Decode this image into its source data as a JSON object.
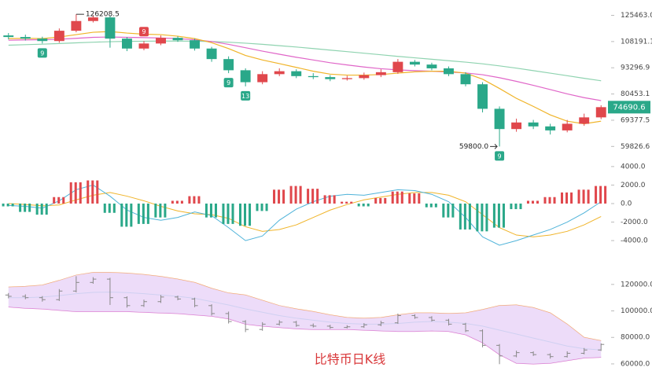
{
  "chart_data": [
    {
      "type": "candlestick",
      "log": true,
      "up_color": "#e0474c",
      "down_color": "#2aa889",
      "open": [
        112000,
        111000,
        110000,
        108500,
        115000,
        121500,
        124000,
        110000,
        104000,
        107000,
        110500,
        109000,
        104000,
        98000,
        92000,
        86000,
        90000,
        91500,
        89000,
        88500,
        87500,
        88000,
        89500,
        91000,
        96500,
        95000,
        93000,
        90000,
        85000,
        74000,
        66000,
        68500,
        67000,
        65500,
        68000,
        70500
      ],
      "high": [
        113500,
        112500,
        111200,
        116500,
        126208.5,
        125500,
        125000,
        111000,
        108500,
        112000,
        111500,
        110000,
        105000,
        99500,
        93000,
        91500,
        93000,
        92500,
        90500,
        89500,
        89200,
        90800,
        92500,
        98000,
        97500,
        96000,
        94000,
        91000,
        86000,
        75000,
        70000,
        69500,
        68000,
        69500,
        72000,
        75500
      ],
      "low": [
        109500,
        108800,
        107000,
        107500,
        114000,
        120500,
        104500,
        102500,
        103000,
        106000,
        108000,
        102800,
        96500,
        90500,
        84000,
        85000,
        89000,
        88000,
        87500,
        86500,
        86800,
        87200,
        88500,
        90200,
        94000,
        92000,
        89000,
        84000,
        72500,
        59800,
        65000,
        66000,
        64000,
        64800,
        67200,
        69800
      ],
      "close": [
        111000,
        110000,
        108500,
        115000,
        121500,
        124000,
        110000,
        104000,
        107000,
        110500,
        109000,
        104000,
        98000,
        92000,
        86000,
        90000,
        91500,
        89000,
        88500,
        87500,
        88000,
        89500,
        91000,
        96500,
        95000,
        93000,
        90000,
        85000,
        74000,
        66000,
        68500,
        67000,
        65500,
        68000,
        70500,
        74690.6
      ],
      "series": [
        {
          "color": "#f0b429",
          "values": [
            110000,
            110200,
            110000,
            111000,
            112500,
            114000,
            114500,
            113500,
            112800,
            112500,
            111500,
            110000,
            107500,
            104000,
            100000,
            97500,
            95500,
            93500,
            91500,
            90000,
            89500,
            89500,
            89800,
            90500,
            91200,
            91500,
            91500,
            90500,
            87500,
            83000,
            78500,
            75000,
            71500,
            69000,
            68000,
            69000
          ]
        },
        {
          "color": "#e066c8",
          "values": [
            109000,
            109200,
            109300,
            109600,
            110200,
            110800,
            111000,
            110800,
            110600,
            110400,
            110000,
            109300,
            108200,
            106500,
            104500,
            102500,
            100700,
            99000,
            97500,
            96000,
            94800,
            93700,
            92800,
            92200,
            91800,
            91500,
            91100,
            90600,
            89700,
            88200,
            86400,
            84500,
            82500,
            80500,
            78800,
            77500
          ]
        },
        {
          "color": "#8fd3b0",
          "values": [
            106000,
            106300,
            106600,
            107000,
            107400,
            107800,
            108100,
            108300,
            108400,
            108500,
            108500,
            108400,
            108200,
            107800,
            107200,
            106500,
            105700,
            104900,
            104000,
            103100,
            102200,
            101300,
            100400,
            99500,
            98700,
            97900,
            97100,
            96300,
            95400,
            94300,
            93100,
            91800,
            90500,
            89200,
            87900,
            86700
          ]
        }
      ],
      "ylim": [
        56800,
        134400
      ],
      "yticks": [
        {
          "value": 125463,
          "label": "125463.0"
        },
        108191.1,
        93296.9,
        80453.1,
        69377.5,
        59826.6
      ],
      "annotations": [
        {
          "value": 126208.5,
          "label": "126208.5"
        },
        {
          "value": 59800,
          "label": "59800.0"
        }
      ],
      "td_marks": [
        {
          "index": 2,
          "value": 9,
          "side": "below"
        },
        {
          "index": 8,
          "value": 9,
          "side": "above"
        },
        {
          "index": 13,
          "value": 9,
          "side": "below"
        },
        {
          "index": 14,
          "value": 13,
          "side": "below"
        },
        {
          "index": 29,
          "value": 9,
          "side": "below"
        }
      ]
    },
    {
      "type": "macd",
      "up_color": "#e0474c",
      "down_color": "#2aa889",
      "values": [
        -300,
        -900,
        -1200,
        700,
        2300,
        2500,
        -1000,
        -2500,
        -2200,
        -1500,
        300,
        800,
        -1500,
        -2200,
        -2400,
        -800,
        1500,
        1900,
        1600,
        900,
        200,
        -300,
        600,
        1300,
        1100,
        -400,
        -1500,
        -2800,
        -3000,
        -2600,
        -600,
        300,
        700,
        1200,
        1500,
        1900
      ],
      "series": [
        {
          "color": "#4fb3d9",
          "values": [
            -200,
            -300,
            -500,
            300,
            1500,
            2000,
            800,
            -700,
            -1500,
            -1800,
            -1500,
            -900,
            -1300,
            -2600,
            -4000,
            -3500,
            -1800,
            -600,
            200,
            800,
            1000,
            900,
            1200,
            1500,
            1400,
            1000,
            200,
            -1500,
            -3600,
            -4500,
            -4000,
            -3400,
            -2800,
            -2000,
            -1000,
            200
          ]
        },
        {
          "color": "#f0b429",
          "values": [
            0,
            -100,
            -250,
            -150,
            400,
            900,
            1200,
            800,
            300,
            -300,
            -800,
            -1100,
            -1200,
            -1600,
            -2500,
            -3000,
            -2800,
            -2300,
            -1500,
            -700,
            -100,
            400,
            700,
            1000,
            1200,
            1200,
            900,
            200,
            -1200,
            -2600,
            -3400,
            -3600,
            -3400,
            -3000,
            -2300,
            -1400
          ]
        }
      ],
      "ylim": [
        -6200,
        4500
      ],
      "yticks": [
        {
          "value": 4000,
          "label": "4000.0"
        },
        {
          "value": 2000,
          "label": "2000.0"
        },
        {
          "value": 0,
          "label": "0.0"
        },
        {
          "value": -2000,
          "label": "-2000.0"
        },
        {
          "value": -4000,
          "label": "-4000.0"
        }
      ]
    },
    {
      "type": "bollinger",
      "title": "比特币日K线",
      "fill": "#e9d3f7",
      "bar_color": "#888888",
      "series": [
        {
          "color": "#f5a35c",
          "values": [
            118000,
            118500,
            119500,
            123000,
            127000,
            129000,
            129000,
            128500,
            127500,
            126000,
            124000,
            121500,
            117000,
            113500,
            112000,
            108000,
            104000,
            101500,
            99500,
            97000,
            95000,
            94500,
            95000,
            97000,
            98500,
            98500,
            98000,
            98500,
            101000,
            104000,
            104500,
            102500,
            98500,
            90000,
            80000,
            77500
          ]
        },
        {
          "color": "#6cc4d8",
          "values": [
            110000,
            110000,
            110500,
            111500,
            113000,
            114000,
            114200,
            113800,
            113000,
            112000,
            111000,
            109500,
            107000,
            104500,
            101500,
            99000,
            96500,
            94500,
            93000,
            91500,
            90500,
            90000,
            90000,
            90500,
            91500,
            92000,
            91500,
            90500,
            88500,
            85500,
            82500,
            79500,
            76500,
            73500,
            71500,
            70500
          ]
        },
        {
          "color": "#d86bc8",
          "values": [
            103000,
            102000,
            101500,
            100500,
            99500,
            99500,
            99500,
            99500,
            99000,
            98500,
            98000,
            97000,
            96000,
            94000,
            90000,
            88500,
            87500,
            86500,
            86000,
            86000,
            86000,
            85500,
            85000,
            84500,
            84500,
            85000,
            84500,
            82000,
            76000,
            67000,
            60500,
            60000,
            60500,
            62500,
            64500,
            65000
          ]
        }
      ],
      "ylim": [
        57000,
        130000
      ],
      "yticks": [
        {
          "value": 120000,
          "label": "120000.0"
        },
        {
          "value": 100000,
          "label": "100000.0"
        },
        {
          "value": 80000,
          "label": "80000.0"
        },
        {
          "value": 60000,
          "label": "60000.0"
        }
      ]
    }
  ]
}
